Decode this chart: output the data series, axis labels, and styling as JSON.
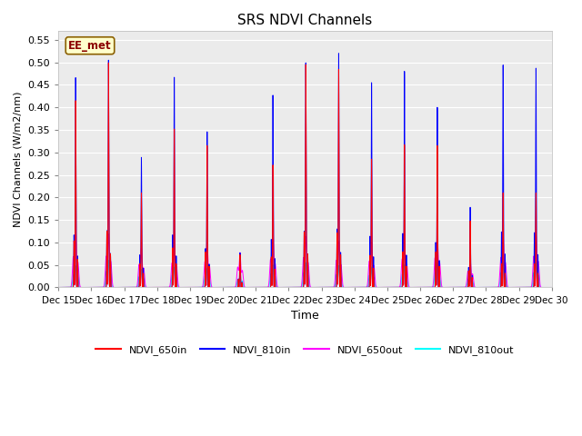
{
  "title": "SRS NDVI Channels",
  "ylabel": "NDVI Channels (W/m2/nm)",
  "xlabel": "Time",
  "annotation": "EE_met",
  "ylim": [
    0.0,
    0.57
  ],
  "yticks": [
    0.0,
    0.05,
    0.1,
    0.15,
    0.2,
    0.25,
    0.3,
    0.35,
    0.4,
    0.45,
    0.5,
    0.55
  ],
  "background_color": "#ebebeb",
  "grid_color": "#ffffff",
  "series_colors": {
    "NDVI_650in": "#ff0000",
    "NDVI_810in": "#0000ff",
    "NDVI_650out": "#ff00ff",
    "NDVI_810out": "#00ffff"
  },
  "x_tick_labels": [
    "Dec 15",
    "Dec 16",
    "Dec 17",
    "Dec 18",
    "Dec 19",
    "Dec 20",
    "Dec 21",
    "Dec 22",
    "Dec 23",
    "Dec 24",
    "Dec 25",
    "Dec 26",
    "Dec 27",
    "Dec 28",
    "Dec 29",
    "Dec 30"
  ],
  "day_peaks_810in": [
    0.466,
    0.505,
    0.289,
    0.467,
    0.346,
    0.077,
    0.427,
    0.499,
    0.52,
    0.455,
    0.48,
    0.4,
    0.178,
    0.494,
    0.487
  ],
  "day_peaks_650in": [
    0.415,
    0.499,
    0.21,
    0.352,
    0.315,
    0.073,
    0.272,
    0.495,
    0.484,
    0.285,
    0.317,
    0.315,
    0.148,
    0.21,
    0.21
  ],
  "day_peaks_650out": [
    0.113,
    0.115,
    0.085,
    0.09,
    0.095,
    0.075,
    0.105,
    0.11,
    0.1,
    0.097,
    0.105,
    0.11,
    0.06,
    0.11,
    0.115
  ],
  "day_peaks_810out": [
    0.048,
    0.06,
    0.04,
    0.045,
    0.042,
    0.03,
    0.05,
    0.055,
    0.048,
    0.045,
    0.05,
    0.055,
    0.03,
    0.055,
    0.055
  ],
  "figsize": [
    6.4,
    4.8
  ],
  "dpi": 100
}
